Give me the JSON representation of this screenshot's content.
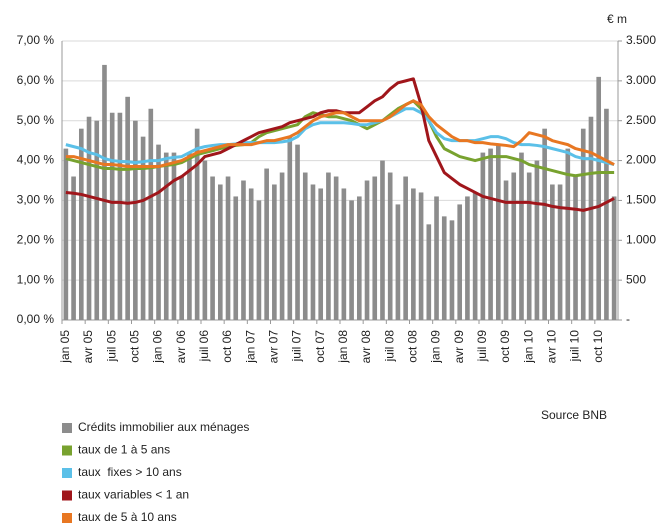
{
  "chart_data": {
    "type": "combo",
    "y2_unit_label": "€ m",
    "source": "Source BNB",
    "categories": [
      "jan 05",
      null,
      null,
      "avr 05",
      null,
      null,
      "juil 05",
      null,
      null,
      "oct 05",
      null,
      null,
      "jan 06",
      null,
      null,
      "avr 06",
      null,
      null,
      "juil 06",
      null,
      null,
      "oct 06",
      null,
      null,
      "jan 07",
      null,
      null,
      "avr 07",
      null,
      null,
      "juil 07",
      null,
      null,
      "oct 07",
      null,
      null,
      "jan 08",
      null,
      null,
      "avr 08",
      null,
      null,
      "juil 08",
      null,
      null,
      "oct 08",
      null,
      null,
      "jan 09",
      null,
      null,
      "avr 09",
      null,
      null,
      "juil 09",
      null,
      null,
      "oct 09",
      null,
      null,
      "jan 10",
      null,
      null,
      "avr 10",
      null,
      null,
      "juil 10",
      null,
      null,
      "oct 10",
      null,
      null
    ],
    "ylim": [
      0,
      7
    ],
    "yticks": [
      {
        "value": 0,
        "label": "0,00 %"
      },
      {
        "value": 1,
        "label": "1,00 %"
      },
      {
        "value": 2,
        "label": "2,00 %"
      },
      {
        "value": 3,
        "label": "3,00 %"
      },
      {
        "value": 4,
        "label": "4,00 %"
      },
      {
        "value": 5,
        "label": "5,00 %"
      },
      {
        "value": 6,
        "label": "6,00 %"
      },
      {
        "value": 7,
        "label": "7,00 %"
      }
    ],
    "y2lim": [
      0,
      3500
    ],
    "y2ticks": [
      {
        "value": 0,
        "label": "-"
      },
      500,
      {
        "value": 1000,
        "label": "1.000"
      },
      {
        "value": 1500,
        "label": "1.500"
      },
      {
        "value": 2000,
        "label": "2.000"
      },
      {
        "value": 2500,
        "label": "2.500"
      },
      {
        "value": 3000,
        "label": "3.000"
      },
      {
        "value": 3500,
        "label": "3.500"
      }
    ],
    "grid": true,
    "series": [
      {
        "name": "Crédits immobilier aux ménages",
        "type": "bar",
        "axis": "y2",
        "color": "#8c8c8c",
        "values": [
          2150,
          1800,
          2400,
          2550,
          2500,
          3200,
          2600,
          2600,
          2800,
          2500,
          2300,
          2650,
          2200,
          2100,
          2100,
          1800,
          2100,
          2400,
          2000,
          1800,
          1700,
          1800,
          1550,
          1750,
          1650,
          1500,
          1900,
          1700,
          1850,
          2300,
          2200,
          1850,
          1700,
          1650,
          1850,
          1800,
          1650,
          1500,
          1550,
          1750,
          1800,
          2000,
          1850,
          1450,
          1800,
          1650,
          1600,
          1200,
          1550,
          1300,
          1250,
          1450,
          1550,
          1600,
          2100,
          2150,
          2200,
          1750,
          1850,
          2100,
          1850,
          2000,
          2400,
          1700,
          1700,
          2150,
          1800,
          2400,
          2550,
          3050,
          2650,
          1550
        ]
      },
      {
        "name": "taux de 1 à 5 ans",
        "type": "line",
        "color": "#78a22f",
        "values": [
          4.05,
          4.0,
          3.95,
          3.9,
          3.85,
          3.8,
          3.8,
          3.78,
          3.78,
          3.8,
          3.8,
          3.82,
          3.85,
          3.88,
          3.9,
          3.95,
          4.05,
          4.15,
          4.2,
          4.25,
          4.3,
          4.35,
          4.38,
          4.4,
          4.45,
          4.6,
          4.7,
          4.75,
          4.8,
          4.85,
          4.9,
          5.1,
          5.2,
          5.15,
          5.1,
          5.1,
          5.05,
          5.0,
          4.9,
          4.8,
          4.9,
          5.0,
          5.15,
          5.3,
          5.4,
          5.5,
          5.3,
          5.0,
          4.6,
          4.3,
          4.2,
          4.1,
          4.05,
          4.0,
          4.05,
          4.1,
          4.1,
          4.1,
          4.05,
          4.0,
          3.9,
          3.85,
          3.8,
          3.75,
          3.7,
          3.65,
          3.62,
          3.65,
          3.68,
          3.7,
          3.7,
          3.7
        ]
      },
      {
        "name": "taux  fixes > 10 ans",
        "type": "line",
        "color": "#5bc0e8",
        "values": [
          4.4,
          4.35,
          4.3,
          4.2,
          4.15,
          4.05,
          4.0,
          3.98,
          3.97,
          3.95,
          3.97,
          4.0,
          4.0,
          4.05,
          4.08,
          4.1,
          4.2,
          4.3,
          4.35,
          4.38,
          4.4,
          4.4,
          4.42,
          4.45,
          4.45,
          4.45,
          4.45,
          4.45,
          4.47,
          4.5,
          4.6,
          4.8,
          4.9,
          4.95,
          4.95,
          4.95,
          4.95,
          4.93,
          4.9,
          4.9,
          4.95,
          5.0,
          5.1,
          5.2,
          5.3,
          5.3,
          5.2,
          5.0,
          4.7,
          4.55,
          4.5,
          4.5,
          4.5,
          4.5,
          4.55,
          4.6,
          4.6,
          4.55,
          4.45,
          4.4,
          4.4,
          4.38,
          4.35,
          4.3,
          4.25,
          4.2,
          4.1,
          4.05,
          4.05,
          4.0,
          3.95,
          3.9
        ]
      },
      {
        "name": "taux variables < 1 an",
        "type": "line",
        "color": "#a0161b",
        "values": [
          3.2,
          3.18,
          3.15,
          3.1,
          3.05,
          3.0,
          2.95,
          2.95,
          2.93,
          2.95,
          3.0,
          3.1,
          3.2,
          3.35,
          3.5,
          3.6,
          3.75,
          3.9,
          4.1,
          4.15,
          4.2,
          4.3,
          4.4,
          4.5,
          4.6,
          4.7,
          4.75,
          4.8,
          4.85,
          4.95,
          5.0,
          5.05,
          5.1,
          5.2,
          5.25,
          5.25,
          5.2,
          5.2,
          5.2,
          5.35,
          5.5,
          5.6,
          5.8,
          5.95,
          6.0,
          6.05,
          5.4,
          4.5,
          4.1,
          3.7,
          3.55,
          3.4,
          3.3,
          3.2,
          3.1,
          3.05,
          3.0,
          2.95,
          2.95,
          2.95,
          2.95,
          2.92,
          2.9,
          2.85,
          2.82,
          2.8,
          2.78,
          2.75,
          2.8,
          2.85,
          2.95,
          3.05
        ]
      },
      {
        "name": "taux de 5 à 10 ans",
        "type": "line",
        "color": "#e87722",
        "values": [
          4.1,
          4.1,
          4.05,
          4.0,
          3.95,
          3.9,
          3.9,
          3.88,
          3.85,
          3.85,
          3.85,
          3.85,
          3.85,
          3.9,
          3.95,
          4.0,
          4.1,
          4.2,
          4.25,
          4.3,
          4.35,
          4.4,
          4.4,
          4.4,
          4.4,
          4.45,
          4.5,
          4.5,
          4.55,
          4.6,
          4.7,
          4.85,
          5.0,
          5.1,
          5.15,
          5.2,
          5.2,
          5.1,
          5.0,
          5.0,
          5.0,
          5.0,
          5.1,
          5.25,
          5.4,
          5.5,
          5.4,
          5.1,
          4.9,
          4.75,
          4.6,
          4.5,
          4.5,
          4.45,
          4.45,
          4.42,
          4.4,
          4.38,
          4.35,
          4.5,
          4.7,
          4.65,
          4.6,
          4.5,
          4.45,
          4.4,
          4.3,
          4.25,
          4.2,
          4.1,
          4.0,
          3.9
        ]
      }
    ]
  }
}
